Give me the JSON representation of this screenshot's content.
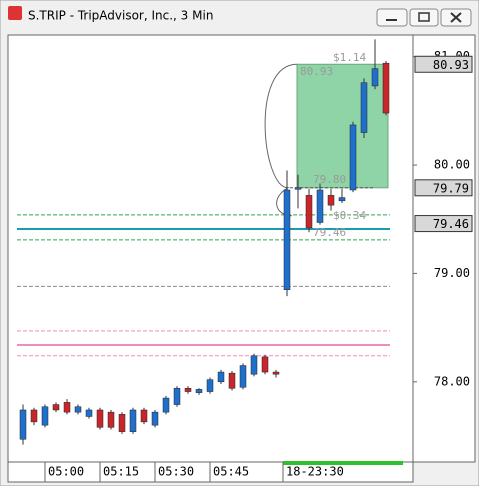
{
  "chart_data": {
    "type": "candlestick",
    "title": "S.TRIP - TripAdvisor, Inc., 3 Min",
    "categories": [
      null,
      null,
      null,
      null,
      "05:00",
      null,
      null,
      null,
      null,
      "05:15",
      null,
      null,
      null,
      null,
      "05:30",
      null,
      null,
      null,
      null,
      "05:45",
      null,
      null,
      null,
      null,
      "18-23:30",
      null,
      null,
      null,
      null,
      null,
      null,
      null,
      null,
      null
    ],
    "open": [
      77.47,
      77.74,
      77.6,
      77.79,
      77.81,
      77.72,
      77.68,
      77.74,
      77.72,
      77.7,
      77.54,
      77.74,
      77.6,
      77.72,
      77.79,
      77.94,
      77.9,
      77.91,
      78.0,
      78.08,
      77.95,
      78.07,
      78.23,
      78.09,
      78.85,
      79.78,
      79.72,
      79.47,
      79.72,
      79.67,
      79.77,
      80.3,
      80.73,
      80.94
    ],
    "high": [
      77.79,
      77.76,
      77.79,
      77.81,
      77.84,
      77.79,
      77.76,
      77.76,
      77.74,
      77.72,
      77.76,
      77.76,
      77.74,
      77.87,
      77.96,
      77.96,
      77.94,
      78.04,
      78.11,
      78.1,
      78.17,
      78.26,
      78.25,
      78.11,
      79.95,
      79.91,
      79.78,
      79.83,
      79.78,
      79.78,
      80.4,
      80.8,
      81.16,
      80.96
    ],
    "low": [
      77.42,
      77.6,
      77.58,
      77.72,
      77.7,
      77.7,
      77.66,
      77.56,
      77.56,
      77.52,
      77.52,
      77.61,
      77.58,
      77.7,
      77.77,
      77.89,
      77.88,
      77.89,
      77.98,
      77.92,
      77.93,
      78.05,
      78.07,
      78.04,
      78.79,
      79.6,
      79.38,
      79.45,
      79.58,
      79.65,
      79.75,
      80.25,
      80.7,
      80.46
    ],
    "close": [
      77.74,
      77.63,
      77.77,
      77.74,
      77.72,
      77.77,
      77.74,
      77.58,
      77.58,
      77.54,
      77.74,
      77.63,
      77.72,
      77.85,
      77.94,
      77.91,
      77.93,
      78.02,
      78.09,
      77.94,
      78.15,
      78.24,
      78.09,
      78.07,
      79.77,
      79.79,
      79.42,
      79.77,
      79.63,
      79.7,
      80.37,
      80.76,
      80.89,
      80.48
    ],
    "up_color": "#1f6fcc",
    "down_color": "#c8262b",
    "ylim": [
      77.26,
      81.2
    ],
    "yticks": [
      {
        "value": 78,
        "label": "78.00"
      },
      {
        "value": 79,
        "label": "79.00"
      },
      {
        "value": 80,
        "label": "80.00"
      },
      {
        "value": 81,
        "label": "81.00"
      }
    ],
    "levels": [
      {
        "value": 79.54,
        "color": "#2ea84a",
        "style": "dashed"
      },
      {
        "value": 79.31,
        "color": "#2ea84a",
        "style": "dashed"
      },
      {
        "value": 79.41,
        "color": "#1a9bb0",
        "style": "solid"
      },
      {
        "value": 78.88,
        "color": "#8a8a8a",
        "style": "dashed"
      },
      {
        "value": 78.47,
        "color": "#f08cc0",
        "style": "dashed"
      },
      {
        "value": 78.34,
        "color": "#f08cc0",
        "style": "solid"
      },
      {
        "value": 78.24,
        "color": "#f08cc0",
        "style": "dashed"
      }
    ],
    "price_labels": [
      80.93,
      79.79,
      79.46
    ],
    "annotations": [
      "$1.14",
      "80.93",
      "79.80",
      "$0.34",
      "79.46"
    ]
  }
}
